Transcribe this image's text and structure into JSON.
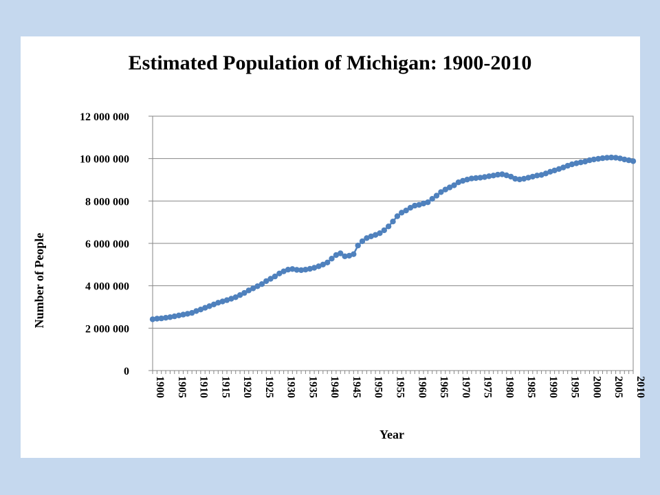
{
  "chart_data": {
    "type": "line",
    "title": "Estimated Population of Michigan: 1900-2010",
    "xlabel": "Year",
    "ylabel": "Number of People",
    "ylim": [
      0,
      12000000
    ],
    "xlim": [
      1900,
      2010
    ],
    "y_ticks": [
      0,
      2000000,
      4000000,
      6000000,
      8000000,
      10000000,
      12000000
    ],
    "y_tick_labels": [
      "0",
      "2 000 000",
      "4 000 000",
      "6 000 000",
      "8 000 000",
      "10 000 000",
      "12 000 000"
    ],
    "x_tick_labels": [
      "1900",
      "1905",
      "1910",
      "1915",
      "1920",
      "1925",
      "1930",
      "1935",
      "1940",
      "1945",
      "1950",
      "1955",
      "1960",
      "1965",
      "1970",
      "1975",
      "1980",
      "1985",
      "1990",
      "1995",
      "2000",
      "2005",
      "2010"
    ],
    "grid": "horizontal",
    "legend": "none",
    "color": "#4f81bd",
    "series": [
      {
        "x": [
          1900,
          1901,
          1902,
          1903,
          1904,
          1905,
          1906,
          1907,
          1908,
          1909,
          1910,
          1911,
          1912,
          1913,
          1914,
          1915,
          1916,
          1917,
          1918,
          1919,
          1920,
          1921,
          1922,
          1923,
          1924,
          1925,
          1926,
          1927,
          1928,
          1929,
          1930,
          1931,
          1932,
          1933,
          1934,
          1935,
          1936,
          1937,
          1938,
          1939,
          1940,
          1941,
          1942,
          1943,
          1944,
          1945,
          1946,
          1947,
          1948,
          1949,
          1950,
          1951,
          1952,
          1953,
          1954,
          1955,
          1956,
          1957,
          1958,
          1959,
          1960,
          1961,
          1962,
          1963,
          1964,
          1965,
          1966,
          1967,
          1968,
          1969,
          1970,
          1971,
          1972,
          1973,
          1974,
          1975,
          1976,
          1977,
          1978,
          1979,
          1980,
          1981,
          1982,
          1983,
          1984,
          1985,
          1986,
          1987,
          1988,
          1989,
          1990,
          1991,
          1992,
          1993,
          1994,
          1995,
          1996,
          1997,
          1998,
          1999,
          2000,
          2001,
          2002,
          2003,
          2004,
          2005,
          2006,
          2007,
          2008,
          2009,
          2010
        ],
        "y": [
          2420000,
          2450000,
          2460000,
          2490000,
          2520000,
          2560000,
          2600000,
          2640000,
          2680000,
          2720000,
          2810000,
          2880000,
          2960000,
          3040000,
          3120000,
          3200000,
          3260000,
          3320000,
          3390000,
          3460000,
          3560000,
          3660000,
          3780000,
          3880000,
          3980000,
          4080000,
          4220000,
          4330000,
          4440000,
          4580000,
          4680000,
          4760000,
          4790000,
          4750000,
          4740000,
          4760000,
          4800000,
          4850000,
          4920000,
          5000000,
          5100000,
          5280000,
          5450000,
          5530000,
          5390000,
          5420000,
          5490000,
          5900000,
          6100000,
          6250000,
          6330000,
          6400000,
          6480000,
          6620000,
          6800000,
          7030000,
          7280000,
          7450000,
          7550000,
          7680000,
          7780000,
          7820000,
          7880000,
          7940000,
          8100000,
          8250000,
          8420000,
          8540000,
          8640000,
          8740000,
          8880000,
          8950000,
          9010000,
          9060000,
          9080000,
          9100000,
          9130000,
          9170000,
          9200000,
          9240000,
          9260000,
          9210000,
          9150000,
          9050000,
          9020000,
          9050000,
          9100000,
          9150000,
          9200000,
          9230000,
          9300000,
          9380000,
          9440000,
          9510000,
          9580000,
          9660000,
          9730000,
          9780000,
          9820000,
          9860000,
          9920000,
          9960000,
          9990000,
          10020000,
          10040000,
          10050000,
          10040000,
          10010000,
          9960000,
          9920000,
          9880000
        ]
      }
    ]
  }
}
